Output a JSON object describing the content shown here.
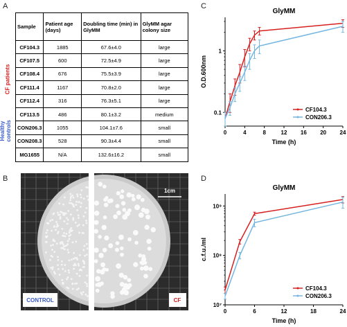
{
  "panel_labels": [
    "A",
    "B",
    "C",
    "D"
  ],
  "table": {
    "header": [
      "Sample",
      "Patient age (days)",
      "Doubling time (min) in GlyMM",
      "GlyMM agar colony size"
    ],
    "group_labels": [
      "CF patients",
      "Healthy controls"
    ],
    "rows": [
      [
        "CF104.3",
        "1885",
        "67.6±4.0",
        "large"
      ],
      [
        "CF107.5",
        "600",
        "72.5±4.9",
        "large"
      ],
      [
        "CF108.4",
        "676",
        "75.5±3.9",
        "large"
      ],
      [
        "CF111.4",
        "1167",
        "70.8±2.0",
        "large"
      ],
      [
        "CF112.4",
        "316",
        "76.3±5.1",
        "large"
      ],
      [
        "CF113.5",
        "486",
        "80.1±3.2",
        "medium"
      ],
      [
        "CON206.3",
        "1055",
        "104.1±7.6",
        "small"
      ],
      [
        "CON208.3",
        "528",
        "90.3±4.4",
        "small"
      ],
      [
        "MG1655",
        "N/A",
        "132.6±16.2",
        "small"
      ]
    ]
  },
  "photo": {
    "scale_bar": "1cm",
    "left_label": "CONTROL",
    "right_label": "CF"
  },
  "chart_data": [
    {
      "type": "line",
      "title": "GlyMM",
      "x_label": "Time (h)",
      "y_label": "O.D.600nm",
      "x": [
        0,
        1,
        2,
        3,
        4,
        5,
        6,
        7,
        24
      ],
      "series": [
        {
          "name": "CF104.3",
          "color": "#d62020",
          "values": [
            0.08,
            0.15,
            0.27,
            0.45,
            0.8,
            1.3,
            1.8,
            2.1,
            2.8
          ],
          "errors": [
            0.02,
            0.05,
            0.08,
            0.15,
            0.25,
            0.3,
            0.3,
            0.3,
            0.4
          ]
        },
        {
          "name": "CON206.3",
          "color": "#74b6e0",
          "values": [
            0.08,
            0.12,
            0.2,
            0.3,
            0.45,
            0.7,
            1.0,
            1.2,
            2.5
          ],
          "errors": [
            0.02,
            0.03,
            0.05,
            0.08,
            0.12,
            0.2,
            0.25,
            0.3,
            0.5
          ]
        }
      ],
      "xlim": [
        0,
        24
      ],
      "ylim": [
        0.06,
        3.5
      ],
      "xticks": [
        0,
        4,
        8,
        12,
        16,
        20,
        24
      ],
      "yticks": [
        0.1,
        1
      ],
      "log_y": true,
      "legend": "lower right"
    },
    {
      "type": "line",
      "title": "GlyMM",
      "x_label": "Time (h)",
      "y_label": "c.f.u./ml",
      "x": [
        0,
        3,
        6,
        24
      ],
      "series": [
        {
          "name": "CF104.3",
          "color": "#d62020",
          "values": [
            20000000,
            190000000,
            700000000,
            1350000000
          ],
          "errors": [
            3000000,
            20000000,
            50000000,
            200000000
          ]
        },
        {
          "name": "CON206.3",
          "color": "#74b6e0",
          "values": [
            15000000,
            100000000,
            460000000,
            1200000000
          ],
          "errors": [
            2000000,
            15000000,
            80000000,
            300000000
          ]
        }
      ],
      "xlim": [
        0,
        24
      ],
      "ylim": [
        10000000,
        1750000000
      ],
      "xticks": [
        0,
        6,
        12,
        18,
        24
      ],
      "yticks": [
        {
          "value": 10000000,
          "label": "10⁷"
        },
        {
          "value": 100000000,
          "label": "10⁸"
        },
        {
          "value": 1000000000,
          "label": "10⁹"
        }
      ],
      "log_y": true,
      "legend": "lower right"
    }
  ]
}
